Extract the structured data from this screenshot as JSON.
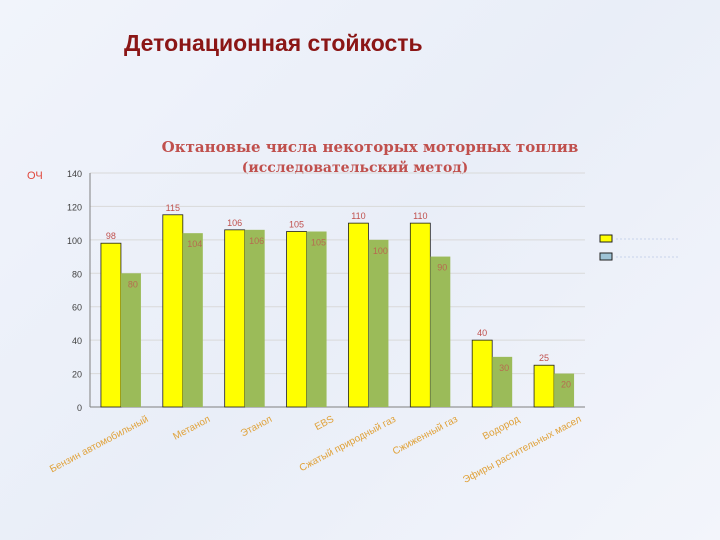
{
  "slide": {
    "title": "Детонационная стойкость",
    "side_label": "ОЧ"
  },
  "colors": {
    "series1": "#ffff00",
    "series2": "#9bbb59",
    "title": "#c0504d",
    "data_label": "#c0504d",
    "grid": "#d9d9d9",
    "axis": "#808080"
  },
  "chart_data": {
    "type": "bar",
    "title": "Октановые числа некоторых моторных топлив",
    "subtitle": "(исследовательский метод)",
    "categories": [
      "Бензин автомобильный",
      "Метанол",
      "Этанол",
      "ЕВS",
      "Сжатый природный газ",
      "Сжиженный газ",
      "Водород",
      "Эфиры растительных масел"
    ],
    "series": [
      {
        "values": [
          98,
          115,
          106,
          105,
          110,
          110,
          40,
          25
        ]
      },
      {
        "values": [
          80,
          104,
          106,
          105,
          100,
          90,
          30,
          20
        ]
      }
    ],
    "data_labels": [
      [
        "98",
        "115",
        "106",
        "105",
        "110",
        "110",
        "40",
        "25"
      ],
      [
        "80",
        "104",
        "106",
        "105",
        "100",
        "90",
        "30",
        "20"
      ]
    ],
    "ylim": [
      0,
      140
    ],
    "yticks": [
      0,
      20,
      40,
      60,
      80,
      100,
      120,
      140
    ],
    "grid": true,
    "legend": "right"
  }
}
